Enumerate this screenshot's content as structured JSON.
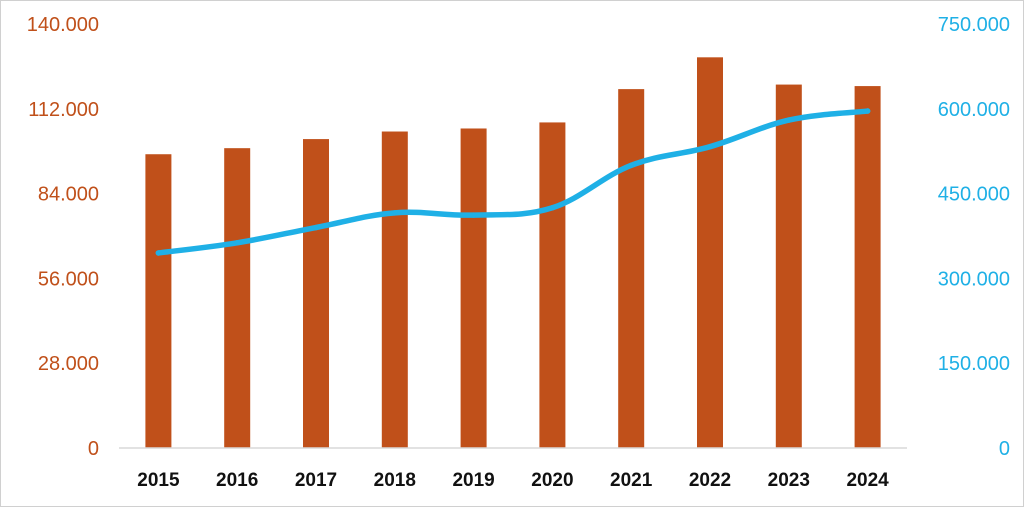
{
  "chart_data": {
    "type": "bar",
    "categories": [
      "2015",
      "2016",
      "2017",
      "2018",
      "2019",
      "2020",
      "2021",
      "2022",
      "2023",
      "2024"
    ],
    "series": [
      {
        "type": "bar",
        "axis": "left",
        "color": "#c0501a",
        "values": [
          97000,
          99000,
          102000,
          104500,
          105500,
          107500,
          118500,
          129000,
          120000,
          119500
        ]
      },
      {
        "type": "line",
        "axis": "right",
        "color": "#1fb0e6",
        "values": [
          345000,
          363000,
          390000,
          416000,
          412000,
          425000,
          500000,
          533000,
          580000,
          596000
        ]
      }
    ],
    "y_left": {
      "lim": [
        0,
        140000
      ],
      "ticks": [
        0,
        28000,
        56000,
        84000,
        112000,
        140000
      ],
      "tick_labels": [
        "0",
        "28.000",
        "56.000",
        "84.000",
        "112.000",
        "140.000"
      ],
      "color": "#c0501a"
    },
    "y_right": {
      "lim": [
        0,
        750000
      ],
      "ticks": [
        0,
        150000,
        300000,
        450000,
        600000,
        750000
      ],
      "tick_labels": [
        "0",
        "150.000",
        "300.000",
        "450.000",
        "600.000",
        "750.000"
      ],
      "color": "#1fb0e6"
    },
    "grid": false,
    "legend": "none"
  }
}
